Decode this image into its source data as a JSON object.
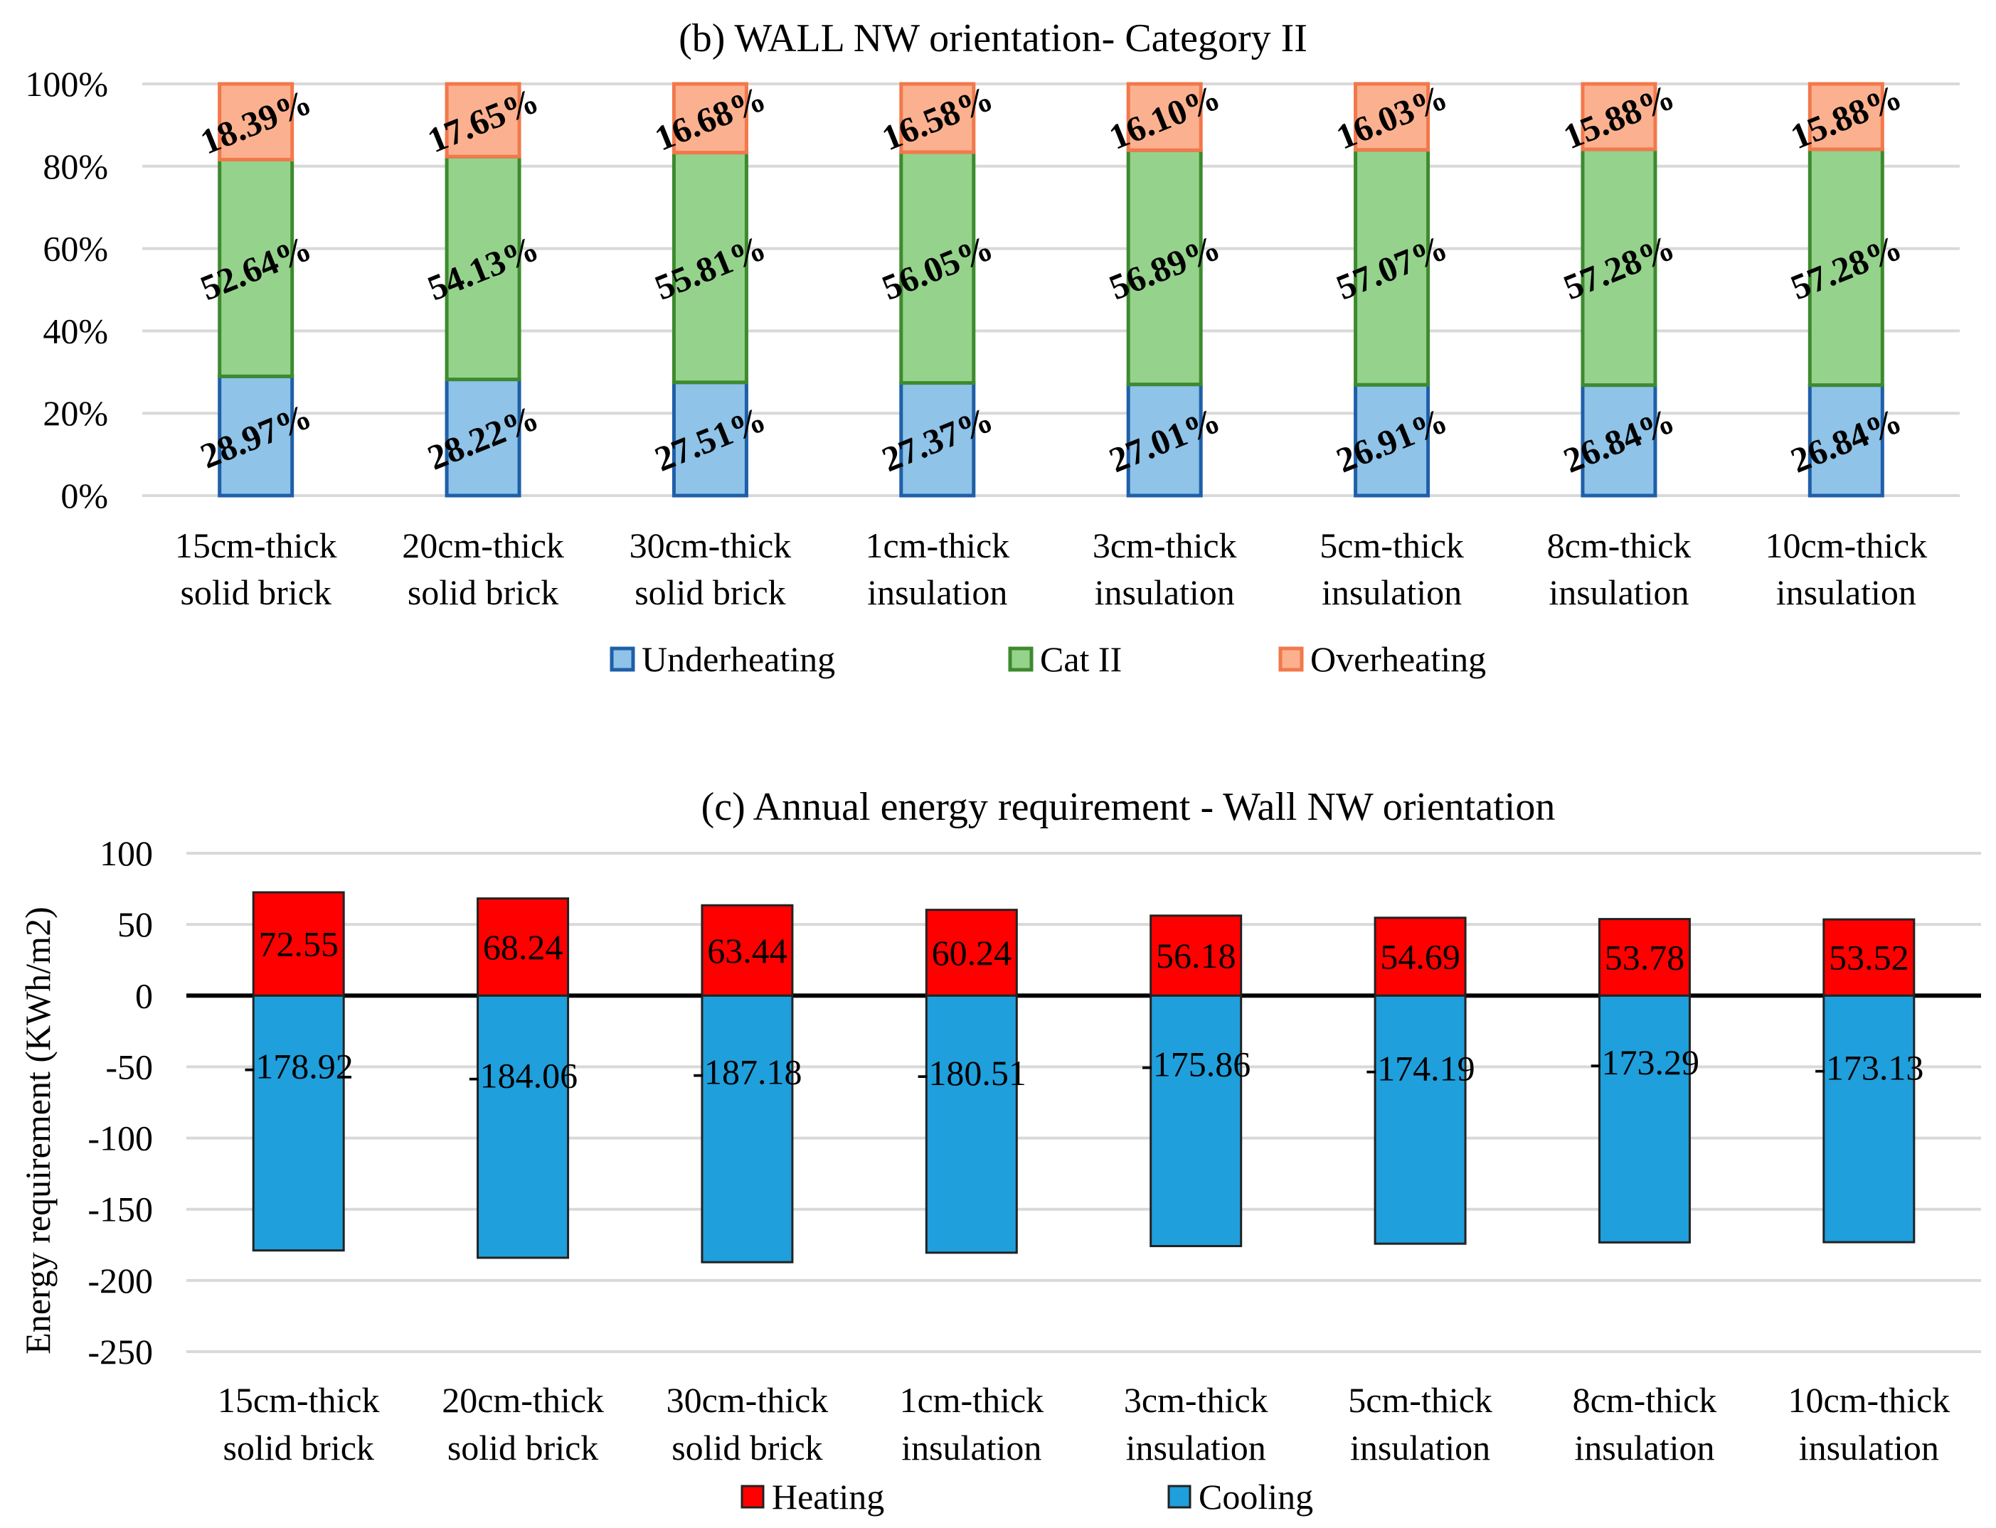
{
  "chart_data": [
    {
      "type": "bar",
      "stacked": "percent",
      "title": "(b) WALL NW orientation- Category II",
      "categories": [
        [
          "15cm-thick",
          "solid brick"
        ],
        [
          "20cm-thick",
          "solid brick"
        ],
        [
          "30cm-thick",
          "solid brick"
        ],
        [
          "1cm-thick",
          "insulation"
        ],
        [
          "3cm-thick",
          "insulation"
        ],
        [
          "5cm-thick",
          "insulation"
        ],
        [
          "8cm-thick",
          "insulation"
        ],
        [
          "10cm-thick",
          "insulation"
        ]
      ],
      "series": [
        {
          "name": "Underheating",
          "color": "#8fc3e8",
          "edge": "#1f5fa8",
          "values": [
            28.97,
            28.22,
            27.51,
            27.37,
            27.01,
            26.91,
            26.84,
            26.84
          ],
          "labels": [
            "28.97%",
            "28.22%",
            "27.51%",
            "27.37%",
            "27.01%",
            "26.91%",
            "26.84%",
            "26.84%"
          ]
        },
        {
          "name": "Cat II",
          "color": "#95d38c",
          "edge": "#3e8a2e",
          "values": [
            52.64,
            54.13,
            55.81,
            56.05,
            56.89,
            57.07,
            57.28,
            57.28
          ],
          "labels": [
            "52.64%",
            "54.13%",
            "55.81%",
            "56.05%",
            "56.89%",
            "57.07%",
            "57.28%",
            "57.28%"
          ]
        },
        {
          "name": "Overheating",
          "color": "#fbb18f",
          "edge": "#f2784b",
          "values": [
            18.39,
            17.65,
            16.68,
            16.58,
            16.1,
            16.03,
            15.88,
            15.88
          ],
          "labels": [
            "18.39%",
            "17.65%",
            "16.68%",
            "16.58%",
            "16.10%",
            "16.03%",
            "15.88%",
            "15.88%"
          ]
        }
      ],
      "ylim": [
        0,
        100
      ],
      "yticks": [
        "0%",
        "20%",
        "40%",
        "60%",
        "80%",
        "100%"
      ],
      "legend": "bottom"
    },
    {
      "type": "bar",
      "title": "(c) Annual energy requirement - Wall NW orientation",
      "ylabel": "Energy requirement (KWh/m2)",
      "categories": [
        [
          "15cm-thick",
          "solid brick"
        ],
        [
          "20cm-thick",
          "solid brick"
        ],
        [
          "30cm-thick",
          "solid brick"
        ],
        [
          "1cm-thick",
          "insulation"
        ],
        [
          "3cm-thick",
          "insulation"
        ],
        [
          "5cm-thick",
          "insulation"
        ],
        [
          "8cm-thick",
          "insulation"
        ],
        [
          "10cm-thick",
          "insulation"
        ]
      ],
      "series": [
        {
          "name": "Heating",
          "color": "#ff0000",
          "values": [
            72.55,
            68.24,
            63.44,
            60.24,
            56.18,
            54.69,
            53.78,
            53.52
          ],
          "labels": [
            "72.55",
            "68.24",
            "63.44",
            "60.24",
            "56.18",
            "54.69",
            "53.78",
            "53.52"
          ]
        },
        {
          "name": "Cooling",
          "color": "#1f9fdc",
          "values": [
            -178.92,
            -184.06,
            -187.18,
            -180.51,
            -175.86,
            -174.19,
            -173.29,
            -173.13
          ],
          "labels": [
            "-178.92",
            "-184.06",
            "-187.18",
            "-180.51",
            "-175.86",
            "-174.19",
            "-173.29",
            "-173.13"
          ]
        }
      ],
      "ylim": [
        -250,
        100
      ],
      "yticks": [
        "-250",
        "-200",
        "-150",
        "-100",
        "-50",
        "0",
        "50",
        "100"
      ],
      "legend": "bottom"
    }
  ]
}
